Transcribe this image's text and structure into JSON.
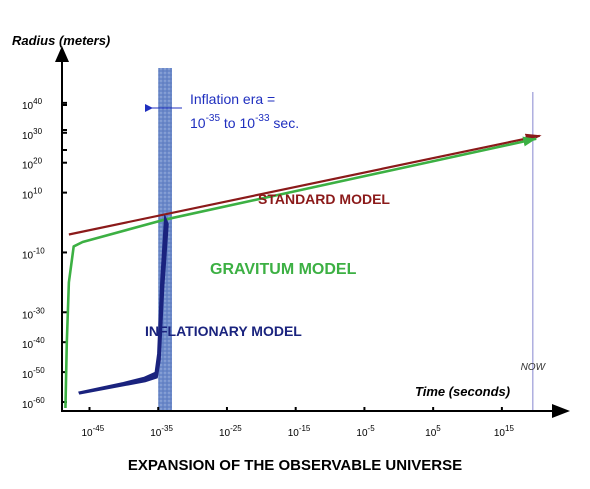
{
  "chart_data": {
    "type": "line",
    "title": "",
    "caption": "EXPANSION OF THE OBSERVABLE UNIVERSE",
    "xlabel": "Time (seconds)",
    "ylabel": "Radius (meters)",
    "x_scale": "log",
    "y_scale": "log",
    "xlim_exponent": [
      -49,
      22
    ],
    "ylim_exponent": [
      -63,
      55
    ],
    "x_ticks": [
      {
        "base": "10",
        "exp": "-45",
        "value": -45
      },
      {
        "base": "10",
        "exp": "-35",
        "value": -35
      },
      {
        "base": "10",
        "exp": "-25",
        "value": -25
      },
      {
        "base": "10",
        "exp": "-15",
        "value": -15
      },
      {
        "base": "10",
        "exp": "-5",
        "value": -5
      },
      {
        "base": "10",
        "exp": "5",
        "value": 5
      },
      {
        "base": "10",
        "exp": "15",
        "value": 15
      }
    ],
    "y_ticks": [
      {
        "base": "10",
        "exp": "40",
        "value": 40
      },
      {
        "base": "10",
        "exp": "30",
        "value": 30
      },
      {
        "base": "10",
        "exp": "20",
        "value": 20
      },
      {
        "base": "10",
        "exp": "10",
        "value": 10
      },
      {
        "base": "10",
        "exp": "-10",
        "value": -10
      },
      {
        "base": "10",
        "exp": "-30",
        "value": -30
      },
      {
        "base": "10",
        "exp": "-40",
        "value": -40
      },
      {
        "base": "10",
        "exp": "-50",
        "value": -50
      },
      {
        "base": "10",
        "exp": "-60",
        "value": -60
      }
    ],
    "series": [
      {
        "name": "STANDARD MODEL",
        "color": "#8b1a1a",
        "style": "arrow",
        "points": [
          [
            -48,
            -4
          ],
          [
            20.5,
            29
          ]
        ]
      },
      {
        "name": "GRAVITUM MODEL",
        "color": "#3cb043",
        "style": "arrow",
        "points": [
          [
            -48.5,
            -62
          ],
          [
            -48.3,
            -40
          ],
          [
            -48.0,
            -20
          ],
          [
            -47.3,
            -8
          ],
          [
            -46,
            -6.5
          ],
          [
            -34,
            1
          ],
          [
            20,
            28
          ]
        ]
      },
      {
        "name": "INFLATIONARY MODEL",
        "color": "#1a237e",
        "style": "band",
        "points": [
          [
            -46.5,
            -57
          ],
          [
            -40,
            -54
          ],
          [
            -37,
            -52.5
          ],
          [
            -35.3,
            -51
          ],
          [
            -34.9,
            -45
          ],
          [
            -34.4,
            -20
          ],
          [
            -33.8,
            1
          ]
        ]
      }
    ],
    "inflation_band": {
      "x_from": -35,
      "x_to": -33,
      "color": "#4a6fb5"
    },
    "annotation": {
      "line1": "Inflation era =",
      "base1": "10",
      "exp1": "-35",
      "mid": " to ",
      "base2": "10",
      "exp2": "-33",
      "end": " sec."
    },
    "now_marker": {
      "label": "NOW",
      "x": 19.5
    }
  }
}
